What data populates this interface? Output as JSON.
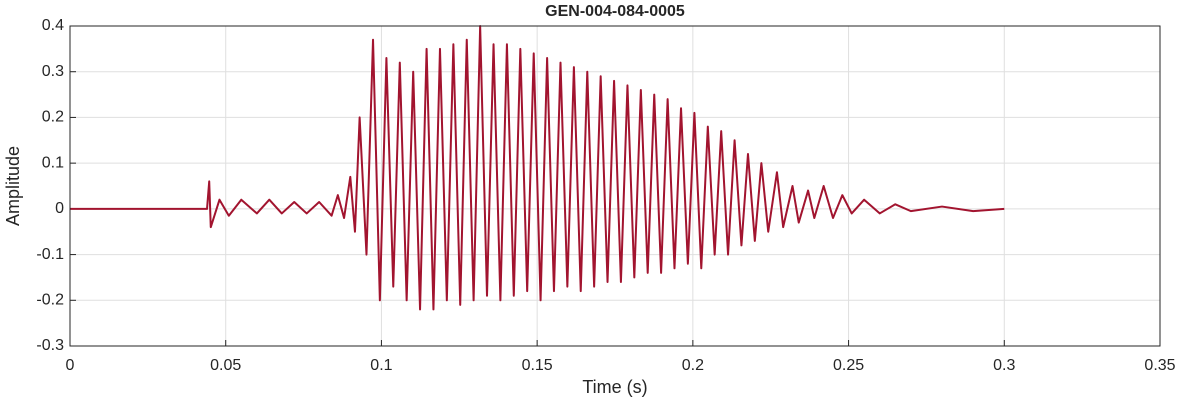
{
  "chart_data": {
    "type": "line",
    "title": "GEN-004-084-0005",
    "x_label": "Time (s)",
    "y_label": "Amplitude",
    "xlim": [
      0,
      0.35
    ],
    "xticks": [
      0,
      0.05,
      0.1,
      0.15,
      0.2,
      0.25,
      0.3,
      0.35
    ],
    "ylim": [
      -0.3,
      0.4
    ],
    "yticks": [
      -0.3,
      -0.2,
      -0.1,
      0,
      0.1,
      0.2,
      0.3,
      0.4
    ],
    "grid": true,
    "series": [
      {
        "color": "#a2142f",
        "x": [
          0,
          0.044,
          0.0447,
          0.0452,
          0.048,
          0.051,
          0.055,
          0.06,
          0.064,
          0.068,
          0.072,
          0.076,
          0.08,
          0.084,
          0.086,
          0.088,
          0.09,
          0.0915,
          0.093,
          0.0952,
          0.0973,
          0.0995,
          0.1016,
          0.1038,
          0.1059,
          0.1081,
          0.1102,
          0.1124,
          0.1145,
          0.1167,
          0.1188,
          0.121,
          0.1231,
          0.1253,
          0.1274,
          0.1296,
          0.1317,
          0.1339,
          0.136,
          0.1382,
          0.1403,
          0.1425,
          0.1446,
          0.1468,
          0.1489,
          0.1511,
          0.1532,
          0.1554,
          0.1575,
          0.1597,
          0.1618,
          0.164,
          0.1661,
          0.1683,
          0.1704,
          0.1726,
          0.1747,
          0.1769,
          0.179,
          0.1812,
          0.1833,
          0.1855,
          0.1876,
          0.1898,
          0.1919,
          0.1941,
          0.1962,
          0.1984,
          0.2005,
          0.2027,
          0.2048,
          0.207,
          0.2091,
          0.2113,
          0.2134,
          0.2156,
          0.2177,
          0.2199,
          0.222,
          0.2242,
          0.227,
          0.229,
          0.232,
          0.234,
          0.237,
          0.239,
          0.242,
          0.245,
          0.248,
          0.251,
          0.255,
          0.26,
          0.265,
          0.27,
          0.28,
          0.29,
          0.3
        ],
        "values": [
          0,
          0,
          0.06,
          -0.04,
          0.02,
          -0.015,
          0.02,
          -0.01,
          0.02,
          -0.01,
          0.015,
          -0.01,
          0.015,
          -0.015,
          0.03,
          -0.02,
          0.07,
          -0.05,
          0.2,
          -0.1,
          0.37,
          -0.2,
          0.33,
          -0.17,
          0.32,
          -0.2,
          0.3,
          -0.22,
          0.35,
          -0.22,
          0.35,
          -0.2,
          0.36,
          -0.21,
          0.37,
          -0.2,
          0.4,
          -0.19,
          0.36,
          -0.2,
          0.36,
          -0.19,
          0.35,
          -0.18,
          0.34,
          -0.2,
          0.33,
          -0.18,
          0.32,
          -0.17,
          0.31,
          -0.18,
          0.3,
          -0.17,
          0.29,
          -0.16,
          0.28,
          -0.16,
          0.27,
          -0.15,
          0.26,
          -0.14,
          0.25,
          -0.14,
          0.24,
          -0.13,
          0.22,
          -0.12,
          0.21,
          -0.13,
          0.18,
          -0.1,
          0.17,
          -0.1,
          0.15,
          -0.08,
          0.12,
          -0.07,
          0.1,
          -0.05,
          0.08,
          -0.04,
          0.05,
          -0.03,
          0.04,
          -0.02,
          0.05,
          -0.02,
          0.03,
          -0.01,
          0.02,
          -0.01,
          0.01,
          -0.005,
          0.005,
          -0.005,
          0
        ]
      }
    ]
  }
}
